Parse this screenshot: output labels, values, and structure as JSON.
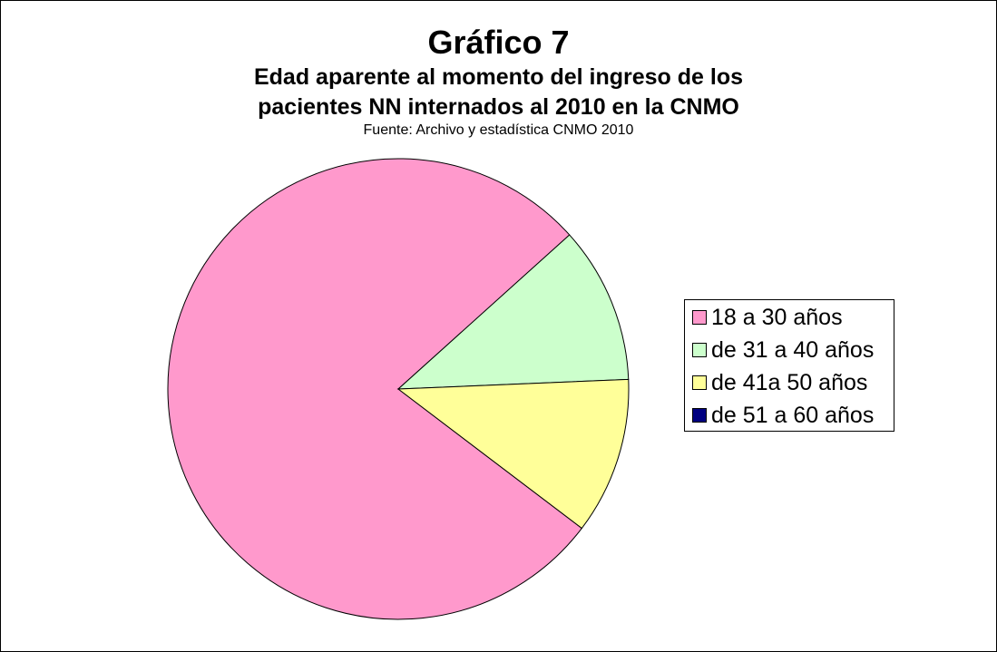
{
  "chart_data": {
    "type": "pie",
    "title": "Gráfico 7",
    "subtitle_line1": "Edad aparente al momento del ingreso de los",
    "subtitle_line2": "pacientes NN internados al 2010 en la CNMO",
    "source": "Fuente: Archivo y estadística CNMO 2010",
    "legend_position": "right",
    "slices": [
      {
        "label": "18 a 30 años",
        "value": 78,
        "color": "#FF99CC"
      },
      {
        "label": "de 31 a 40 años",
        "value": 11,
        "color": "#CCFFCC"
      },
      {
        "label": "de 41a 50 años",
        "value": 11,
        "color": "#FFFF99"
      },
      {
        "label": "de 51 a 60 años",
        "value": 0,
        "color": "#000080"
      }
    ]
  }
}
